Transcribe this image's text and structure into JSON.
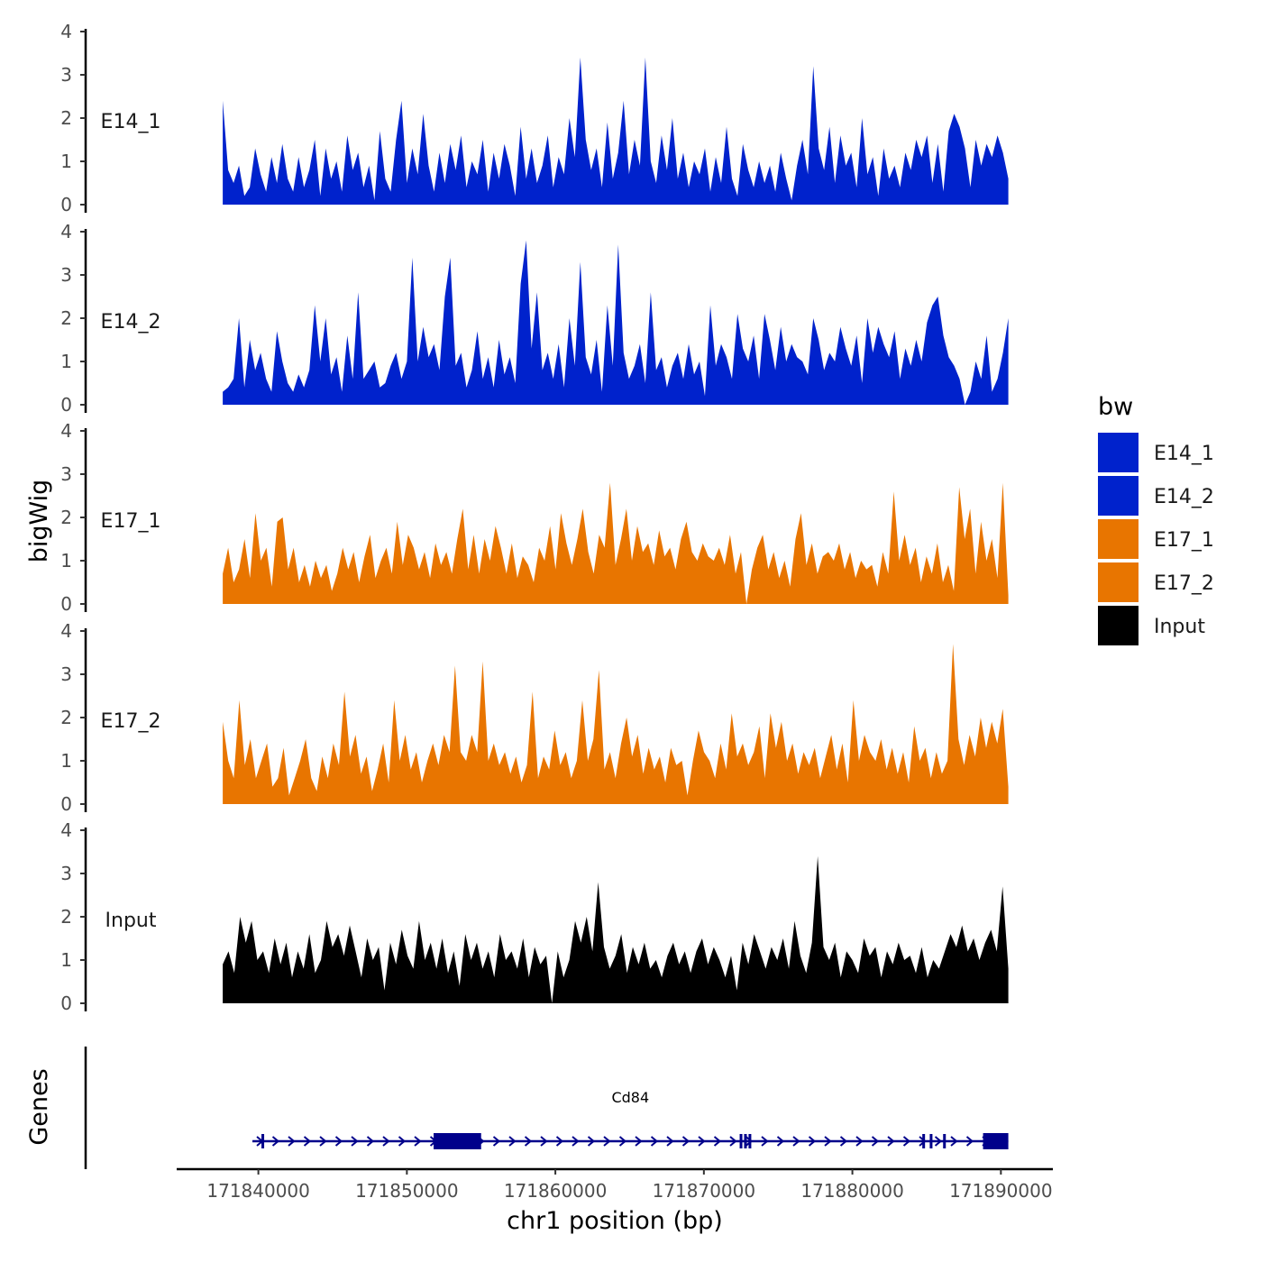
{
  "chart_data": {
    "type": "area",
    "subtype": "genome-browser-coverage-tracks",
    "x": {
      "label": "chr1 position (bp)",
      "range": [
        171834500,
        171893500
      ],
      "ticks": [
        171840000,
        171850000,
        171860000,
        171870000,
        171880000,
        171890000
      ],
      "tick_labels": [
        "171840000",
        "171850000",
        "171860000",
        "171870000",
        "171880000",
        "171890000"
      ]
    },
    "y": {
      "label": "bigWig",
      "range": [
        0,
        4
      ],
      "ticks": [
        0,
        1,
        2,
        3,
        4
      ],
      "tick_labels": [
        "0",
        "1",
        "2",
        "3",
        "4"
      ]
    },
    "genes_axis_label": "Genes",
    "legend": {
      "title": "bw",
      "position": "right",
      "entries": [
        {
          "label": "E14_1",
          "color": "#0022cc"
        },
        {
          "label": "E14_2",
          "color": "#0022cc"
        },
        {
          "label": "E17_1",
          "color": "#e87500"
        },
        {
          "label": "E17_2",
          "color": "#e87500"
        },
        {
          "label": "Input",
          "color": "#000000"
        }
      ]
    },
    "data_start": 171837600,
    "data_end": 171890500,
    "series": [
      {
        "name": "E14_1",
        "color": "#0022cc",
        "values": [
          2.4,
          0.8,
          0.5,
          0.9,
          0.2,
          0.4,
          1.3,
          0.7,
          0.3,
          1.1,
          0.5,
          1.4,
          0.6,
          0.3,
          1.1,
          0.4,
          0.8,
          1.5,
          0.2,
          1.3,
          0.6,
          1.0,
          0.3,
          1.6,
          0.8,
          1.2,
          0.4,
          0.9,
          0.1,
          1.7,
          0.6,
          0.3,
          1.5,
          2.4,
          0.5,
          1.3,
          0.7,
          2.1,
          0.9,
          0.3,
          1.2,
          0.5,
          1.4,
          0.8,
          1.6,
          0.4,
          1.0,
          0.7,
          1.5,
          0.3,
          1.2,
          0.6,
          1.4,
          0.9,
          0.2,
          1.8,
          0.6,
          1.3,
          0.5,
          0.9,
          1.6,
          0.4,
          1.1,
          0.7,
          2.0,
          1.1,
          3.4,
          1.5,
          0.8,
          1.3,
          0.4,
          1.9,
          0.6,
          1.2,
          2.4,
          0.7,
          1.5,
          0.9,
          3.4,
          1.0,
          0.5,
          1.6,
          0.8,
          2.0,
          0.6,
          1.2,
          0.4,
          1.0,
          0.7,
          1.3,
          0.3,
          1.1,
          0.5,
          1.8,
          0.6,
          0.2,
          1.4,
          0.8,
          0.4,
          1.0,
          0.5,
          0.9,
          0.3,
          1.2,
          0.6,
          0.1,
          0.9,
          1.5,
          0.7,
          3.2,
          1.3,
          0.8,
          1.8,
          0.5,
          1.6,
          0.9,
          1.2,
          0.4,
          2.0,
          0.7,
          1.1,
          0.2,
          1.3,
          0.6,
          0.9,
          0.4,
          1.2,
          0.8,
          1.5,
          1.1,
          1.6,
          0.5,
          1.4,
          0.3,
          1.7,
          2.1,
          1.8,
          1.3,
          0.4,
          1.5,
          0.9,
          1.4,
          1.1,
          1.6,
          1.2,
          0.6
        ]
      },
      {
        "name": "E14_2",
        "color": "#0022cc",
        "values": [
          0.3,
          0.4,
          0.6,
          2.0,
          0.4,
          1.5,
          0.8,
          1.2,
          0.6,
          0.3,
          1.7,
          1.0,
          0.5,
          0.3,
          0.7,
          0.4,
          0.8,
          2.3,
          1.0,
          2.0,
          0.7,
          1.1,
          0.3,
          1.6,
          0.6,
          2.6,
          0.6,
          0.8,
          1.0,
          0.4,
          0.5,
          0.9,
          1.2,
          0.6,
          1.0,
          3.4,
          1.0,
          1.8,
          1.1,
          1.4,
          0.8,
          2.5,
          3.4,
          0.9,
          1.2,
          0.4,
          0.8,
          1.7,
          0.6,
          1.1,
          0.4,
          1.5,
          0.7,
          1.1,
          0.5,
          2.8,
          3.8,
          1.3,
          2.6,
          0.8,
          1.2,
          0.6,
          1.4,
          0.4,
          2.0,
          0.9,
          3.3,
          1.1,
          0.7,
          1.5,
          0.3,
          2.3,
          0.9,
          3.7,
          1.2,
          0.6,
          0.9,
          1.4,
          0.5,
          2.6,
          0.8,
          1.1,
          0.4,
          0.9,
          1.2,
          0.6,
          1.4,
          0.7,
          1.0,
          0.2,
          2.3,
          0.9,
          1.4,
          1.1,
          0.6,
          2.1,
          1.3,
          1.0,
          1.6,
          0.6,
          2.1,
          1.5,
          0.8,
          1.8,
          1.0,
          1.4,
          1.1,
          1.0,
          0.7,
          2.0,
          1.5,
          0.8,
          1.2,
          1.0,
          1.8,
          1.3,
          0.9,
          1.6,
          0.5,
          2.0,
          1.2,
          1.8,
          1.4,
          1.1,
          1.7,
          0.6,
          1.3,
          0.9,
          1.5,
          1.0,
          1.9,
          2.3,
          2.5,
          1.6,
          1.1,
          0.9,
          0.6,
          0.0,
          0.3,
          1.0,
          0.6,
          1.6,
          0.3,
          0.6,
          1.2,
          2.0
        ]
      },
      {
        "name": "E17_1",
        "color": "#e87500",
        "values": [
          0.7,
          1.3,
          0.5,
          0.8,
          1.5,
          0.6,
          2.1,
          1.0,
          1.3,
          0.4,
          1.9,
          2.0,
          0.8,
          1.3,
          0.5,
          0.9,
          0.4,
          1.0,
          0.6,
          0.9,
          0.3,
          0.7,
          1.3,
          0.8,
          1.2,
          0.5,
          1.1,
          1.6,
          0.6,
          1.0,
          1.3,
          0.7,
          1.9,
          0.9,
          1.6,
          1.3,
          0.8,
          1.2,
          0.6,
          1.4,
          0.9,
          1.2,
          0.7,
          1.5,
          2.2,
          0.8,
          1.6,
          0.7,
          1.5,
          1.0,
          1.8,
          1.3,
          0.7,
          1.4,
          0.6,
          1.1,
          0.9,
          0.5,
          1.3,
          1.0,
          1.8,
          0.8,
          2.1,
          1.4,
          0.9,
          1.5,
          2.2,
          1.2,
          0.7,
          1.6,
          1.3,
          2.8,
          0.9,
          1.5,
          2.2,
          1.0,
          1.8,
          1.2,
          1.4,
          0.9,
          1.7,
          1.1,
          1.3,
          0.8,
          1.5,
          1.9,
          1.2,
          1.0,
          1.4,
          1.1,
          1.0,
          1.3,
          0.9,
          1.6,
          0.7,
          1.2,
          0.0,
          0.8,
          1.3,
          1.6,
          0.8,
          1.2,
          0.6,
          1.0,
          0.4,
          1.5,
          2.1,
          0.9,
          1.4,
          0.7,
          1.1,
          1.2,
          1.0,
          1.4,
          0.8,
          1.2,
          0.6,
          1.0,
          0.8,
          0.9,
          0.4,
          1.2,
          0.7,
          2.6,
          1.0,
          1.6,
          0.9,
          1.3,
          0.5,
          1.1,
          0.7,
          1.4,
          0.5,
          0.9,
          0.3,
          2.7,
          1.5,
          2.2,
          0.7,
          1.9,
          1.0,
          1.5,
          0.6,
          2.8,
          0.2
        ]
      },
      {
        "name": "E17_2",
        "color": "#e87500",
        "values": [
          1.9,
          1.0,
          0.6,
          2.4,
          0.9,
          1.5,
          0.6,
          1.0,
          1.4,
          0.4,
          0.6,
          1.3,
          0.2,
          0.6,
          1.0,
          1.5,
          0.6,
          0.3,
          1.1,
          0.6,
          1.4,
          0.9,
          2.6,
          1.1,
          1.6,
          0.7,
          1.1,
          0.3,
          0.8,
          1.4,
          0.5,
          2.4,
          1.0,
          1.6,
          0.8,
          1.2,
          0.5,
          1.0,
          1.4,
          0.9,
          1.6,
          1.2,
          3.2,
          1.2,
          1.0,
          1.6,
          1.2,
          3.3,
          1.0,
          1.4,
          0.9,
          1.2,
          0.7,
          1.1,
          0.5,
          0.9,
          2.6,
          0.6,
          1.1,
          0.8,
          1.7,
          0.9,
          1.2,
          0.6,
          1.0,
          2.4,
          1.0,
          1.5,
          3.1,
          0.8,
          1.2,
          0.6,
          1.4,
          2.0,
          1.1,
          1.6,
          0.7,
          1.3,
          0.8,
          1.1,
          0.5,
          1.3,
          0.9,
          1.0,
          0.2,
          1.0,
          1.7,
          1.2,
          1.0,
          0.6,
          1.4,
          0.8,
          2.1,
          1.1,
          1.4,
          0.9,
          1.2,
          1.8,
          0.6,
          2.1,
          1.3,
          1.9,
          1.0,
          1.4,
          0.7,
          1.2,
          0.9,
          1.3,
          0.6,
          1.1,
          1.6,
          0.8,
          1.4,
          0.5,
          2.4,
          1.0,
          1.6,
          1.2,
          1.0,
          1.5,
          0.8,
          1.3,
          0.7,
          1.2,
          0.5,
          1.8,
          1.0,
          1.3,
          0.6,
          1.2,
          0.7,
          1.0,
          3.7,
          1.5,
          0.9,
          1.6,
          1.1,
          2.0,
          1.3,
          1.9,
          1.4,
          2.2,
          0.4
        ]
      },
      {
        "name": "Input",
        "color": "#000000",
        "values": [
          0.9,
          1.2,
          0.7,
          2.0,
          1.4,
          1.9,
          1.0,
          1.2,
          0.7,
          1.5,
          0.9,
          1.4,
          0.6,
          1.2,
          0.8,
          1.6,
          0.7,
          1.0,
          1.9,
          1.3,
          1.6,
          1.1,
          1.8,
          1.2,
          0.6,
          1.5,
          1.0,
          1.3,
          0.3,
          1.4,
          0.9,
          1.7,
          1.1,
          0.8,
          1.9,
          1.0,
          1.4,
          0.8,
          1.5,
          0.7,
          1.2,
          0.4,
          1.6,
          1.0,
          1.4,
          0.8,
          1.2,
          0.6,
          1.6,
          1.0,
          1.2,
          0.8,
          1.5,
          0.6,
          1.3,
          0.9,
          1.1,
          0.0,
          1.2,
          0.6,
          1.0,
          1.9,
          1.4,
          2.0,
          1.2,
          2.8,
          1.3,
          0.8,
          1.1,
          1.6,
          0.7,
          1.3,
          0.9,
          1.4,
          0.8,
          1.0,
          0.6,
          1.1,
          1.4,
          0.9,
          1.2,
          0.7,
          1.2,
          1.5,
          0.9,
          1.3,
          1.0,
          0.6,
          1.1,
          0.3,
          1.4,
          0.9,
          1.6,
          1.2,
          0.8,
          1.3,
          1.0,
          1.5,
          0.8,
          1.9,
          1.1,
          0.7,
          1.4,
          3.4,
          1.3,
          1.0,
          1.4,
          0.6,
          1.2,
          1.0,
          0.7,
          1.5,
          1.1,
          1.3,
          0.6,
          1.2,
          0.9,
          1.4,
          1.0,
          1.1,
          0.7,
          1.3,
          0.6,
          1.0,
          0.8,
          1.2,
          1.6,
          1.3,
          1.8,
          1.2,
          1.5,
          1.0,
          1.4,
          1.7,
          1.2,
          2.7,
          0.8
        ]
      }
    ],
    "gene": {
      "name": "Cd84",
      "strand": "+",
      "color": "#00008b",
      "start": 171839600,
      "end": 171890500,
      "thick_blocks": [
        [
          171851800,
          171855000
        ],
        [
          171888800,
          171890500
        ]
      ],
      "exon_marks": [
        171840300,
        171872500,
        171872800,
        171873100,
        171884800,
        171885300,
        171886200
      ]
    }
  }
}
